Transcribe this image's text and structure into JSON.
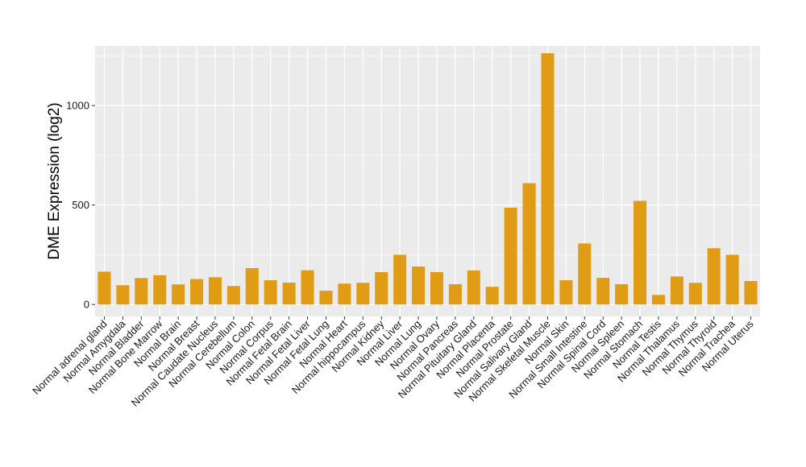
{
  "chart_data": {
    "type": "bar",
    "ylabel": "DME Expression (log2)",
    "xlabel": "",
    "ylim": [
      -60,
      1300
    ],
    "yticks": [
      0,
      500,
      1000
    ],
    "bar_color": "#E19C15",
    "panel_color": "#EBEBEB",
    "grid_color": "#FFFFFF",
    "grid": true,
    "categories": [
      "Normal adrenal gland",
      "Normal Amygdala",
      "Normal Bladder",
      "Normal Bone Marrow",
      "Normal Brain",
      "Normal Breast",
      "Normal Caudate Nucleus",
      "Normal Cerebellum",
      "Normal Colon",
      "Normal Corpus",
      "Normal Fetal Brain",
      "Normal Fetal Liver",
      "Normal Fetal Lung",
      "Normal Heart",
      "Normal hippocampus",
      "Normal Kidney",
      "Normal Liver",
      "Normal Lung",
      "Normal Ovary",
      "Normal Pancreas",
      "Normal Pituitary Gland",
      "Normal Placenta",
      "Normal Prostate",
      "Normal Salivary Gland",
      "Normal Skeletal Muscle",
      "Normal Skin",
      "Normal Small Intestine",
      "Normal Spinal Cord",
      "Normal Spleen",
      "Normal Stomach",
      "Normal Testis",
      "Normal Thalamus",
      "Normal Thymus",
      "Normal Thyroid",
      "Normal Trachea",
      "Normal Uterus"
    ],
    "values": [
      165,
      97,
      133,
      147,
      101,
      128,
      137,
      93,
      183,
      122,
      110,
      172,
      69,
      105,
      109,
      163,
      250,
      191,
      163,
      102,
      171,
      89,
      487,
      610,
      1263,
      122,
      307,
      134,
      102,
      521,
      48,
      141,
      109,
      283,
      250,
      118
    ]
  }
}
